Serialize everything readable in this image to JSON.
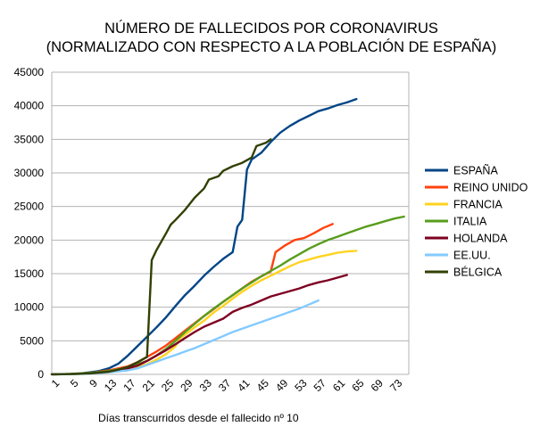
{
  "chart_data": {
    "type": "line",
    "title": "NÚMERO DE FALLECIDOS POR CORONAVIRUS",
    "subtitle": "(NORMALIZADO CON RESPECTO A LA POBLACIÓN DE ESPAÑA)",
    "xlabel": "Días transcurridos desde el fallecido nº 10",
    "ylabel": "",
    "xlim": [
      1,
      76
    ],
    "ylim": [
      0,
      45000
    ],
    "grid": true,
    "legend": "right",
    "x_ticks": [
      1,
      5,
      9,
      13,
      17,
      21,
      25,
      29,
      33,
      37,
      41,
      45,
      49,
      53,
      57,
      61,
      65,
      69,
      73
    ],
    "y_ticks": [
      0,
      5000,
      10000,
      15000,
      20000,
      25000,
      30000,
      35000,
      40000,
      45000
    ],
    "series": [
      {
        "name": "ESPAÑA",
        "color": "#004586",
        "points": [
          [
            1,
            10
          ],
          [
            3,
            30
          ],
          [
            5,
            60
          ],
          [
            7,
            130
          ],
          [
            9,
            300
          ],
          [
            11,
            500
          ],
          [
            13,
            900
          ],
          [
            15,
            1600
          ],
          [
            17,
            2800
          ],
          [
            19,
            4200
          ],
          [
            21,
            5600
          ],
          [
            23,
            7000
          ],
          [
            25,
            8500
          ],
          [
            27,
            10200
          ],
          [
            29,
            11800
          ],
          [
            31,
            13200
          ],
          [
            33,
            14700
          ],
          [
            35,
            16000
          ],
          [
            37,
            17200
          ],
          [
            39,
            18200
          ],
          [
            40,
            22000
          ],
          [
            41,
            23000
          ],
          [
            42,
            30500
          ],
          [
            43,
            32000
          ],
          [
            44,
            32500
          ],
          [
            45,
            33000
          ],
          [
            46,
            33800
          ],
          [
            47,
            34600
          ],
          [
            49,
            36000
          ],
          [
            51,
            37000
          ],
          [
            53,
            37800
          ],
          [
            55,
            38500
          ],
          [
            57,
            39200
          ],
          [
            59,
            39600
          ],
          [
            61,
            40100
          ],
          [
            63,
            40500
          ],
          [
            65,
            41000
          ]
        ]
      },
      {
        "name": "REINO UNIDO",
        "color": "#ff420e",
        "points": [
          [
            1,
            10
          ],
          [
            5,
            40
          ],
          [
            9,
            200
          ],
          [
            13,
            600
          ],
          [
            17,
            1200
          ],
          [
            19,
            1800
          ],
          [
            21,
            2600
          ],
          [
            23,
            3400
          ],
          [
            25,
            4300
          ],
          [
            27,
            5400
          ],
          [
            29,
            6500
          ],
          [
            31,
            7600
          ],
          [
            33,
            8700
          ],
          [
            35,
            9700
          ],
          [
            37,
            10800
          ],
          [
            39,
            11800
          ],
          [
            41,
            12800
          ],
          [
            43,
            13800
          ],
          [
            45,
            14600
          ],
          [
            47,
            15300
          ],
          [
            48,
            18200
          ],
          [
            50,
            19200
          ],
          [
            52,
            20000
          ],
          [
            54,
            20300
          ],
          [
            56,
            21000
          ],
          [
            58,
            21800
          ],
          [
            60,
            22400
          ]
        ]
      },
      {
        "name": "FRANCIA",
        "color": "#ffd320",
        "points": [
          [
            1,
            10
          ],
          [
            5,
            40
          ],
          [
            9,
            150
          ],
          [
            13,
            400
          ],
          [
            17,
            800
          ],
          [
            21,
            1500
          ],
          [
            23,
            2200
          ],
          [
            25,
            3000
          ],
          [
            27,
            4200
          ],
          [
            28,
            5400
          ],
          [
            29,
            5900
          ],
          [
            31,
            7000
          ],
          [
            33,
            8000
          ],
          [
            35,
            9200
          ],
          [
            37,
            10200
          ],
          [
            39,
            11300
          ],
          [
            41,
            12300
          ],
          [
            43,
            13200
          ],
          [
            45,
            14000
          ],
          [
            47,
            14700
          ],
          [
            49,
            15400
          ],
          [
            51,
            16100
          ],
          [
            53,
            16700
          ],
          [
            55,
            17100
          ],
          [
            57,
            17500
          ],
          [
            59,
            17800
          ],
          [
            61,
            18100
          ],
          [
            63,
            18300
          ],
          [
            65,
            18400
          ]
        ]
      },
      {
        "name": "ITALIA",
        "color": "#579d1c",
        "points": [
          [
            1,
            10
          ],
          [
            5,
            60
          ],
          [
            9,
            230
          ],
          [
            13,
            500
          ],
          [
            17,
            1000
          ],
          [
            21,
            2000
          ],
          [
            23,
            2800
          ],
          [
            25,
            3800
          ],
          [
            27,
            5000
          ],
          [
            29,
            6300
          ],
          [
            31,
            7500
          ],
          [
            33,
            8700
          ],
          [
            35,
            9800
          ],
          [
            37,
            10800
          ],
          [
            39,
            11800
          ],
          [
            41,
            12800
          ],
          [
            43,
            13700
          ],
          [
            45,
            14600
          ],
          [
            47,
            15400
          ],
          [
            49,
            16200
          ],
          [
            51,
            17100
          ],
          [
            53,
            17900
          ],
          [
            55,
            18700
          ],
          [
            57,
            19400
          ],
          [
            59,
            20000
          ],
          [
            61,
            20500
          ],
          [
            63,
            21000
          ],
          [
            65,
            21500
          ],
          [
            67,
            22000
          ],
          [
            69,
            22400
          ],
          [
            71,
            22800
          ],
          [
            73,
            23200
          ],
          [
            75,
            23500
          ]
        ]
      },
      {
        "name": "HOLANDA",
        "color": "#7e0021",
        "points": [
          [
            1,
            10
          ],
          [
            5,
            40
          ],
          [
            9,
            150
          ],
          [
            13,
            400
          ],
          [
            17,
            900
          ],
          [
            19,
            1300
          ],
          [
            21,
            2000
          ],
          [
            23,
            2800
          ],
          [
            25,
            3600
          ],
          [
            27,
            4500
          ],
          [
            29,
            5400
          ],
          [
            31,
            6300
          ],
          [
            33,
            7100
          ],
          [
            35,
            7700
          ],
          [
            37,
            8300
          ],
          [
            39,
            9300
          ],
          [
            41,
            9900
          ],
          [
            43,
            10400
          ],
          [
            45,
            11000
          ],
          [
            47,
            11600
          ],
          [
            49,
            12000
          ],
          [
            51,
            12400
          ],
          [
            53,
            12800
          ],
          [
            55,
            13300
          ],
          [
            57,
            13700
          ],
          [
            59,
            14000
          ],
          [
            61,
            14400
          ],
          [
            63,
            14800
          ]
        ]
      },
      {
        "name": "EE.UU.",
        "color": "#83caff",
        "points": [
          [
            1,
            10
          ],
          [
            5,
            30
          ],
          [
            9,
            100
          ],
          [
            13,
            300
          ],
          [
            17,
            600
          ],
          [
            19,
            900
          ],
          [
            21,
            1400
          ],
          [
            23,
            1900
          ],
          [
            25,
            2400
          ],
          [
            27,
            2900
          ],
          [
            29,
            3400
          ],
          [
            31,
            3900
          ],
          [
            33,
            4500
          ],
          [
            35,
            5100
          ],
          [
            37,
            5700
          ],
          [
            39,
            6300
          ],
          [
            41,
            6800
          ],
          [
            43,
            7300
          ],
          [
            45,
            7800
          ],
          [
            47,
            8300
          ],
          [
            49,
            8800
          ],
          [
            51,
            9300
          ],
          [
            53,
            9800
          ],
          [
            55,
            10400
          ],
          [
            57,
            11000
          ]
        ]
      },
      {
        "name": "BÉLGICA",
        "color": "#314004",
        "points": [
          [
            1,
            10
          ],
          [
            5,
            40
          ],
          [
            9,
            150
          ],
          [
            13,
            400
          ],
          [
            15,
            700
          ],
          [
            17,
            1100
          ],
          [
            19,
            1800
          ],
          [
            21,
            2600
          ],
          [
            22,
            17000
          ],
          [
            23,
            18500
          ],
          [
            25,
            21000
          ],
          [
            26,
            22300
          ],
          [
            27,
            23000
          ],
          [
            29,
            24500
          ],
          [
            31,
            26300
          ],
          [
            33,
            27700
          ],
          [
            34,
            29000
          ],
          [
            36,
            29500
          ],
          [
            37,
            30300
          ],
          [
            39,
            31000
          ],
          [
            41,
            31500
          ],
          [
            43,
            32300
          ],
          [
            44,
            34000
          ],
          [
            46,
            34500
          ],
          [
            47,
            35000
          ]
        ]
      }
    ]
  }
}
